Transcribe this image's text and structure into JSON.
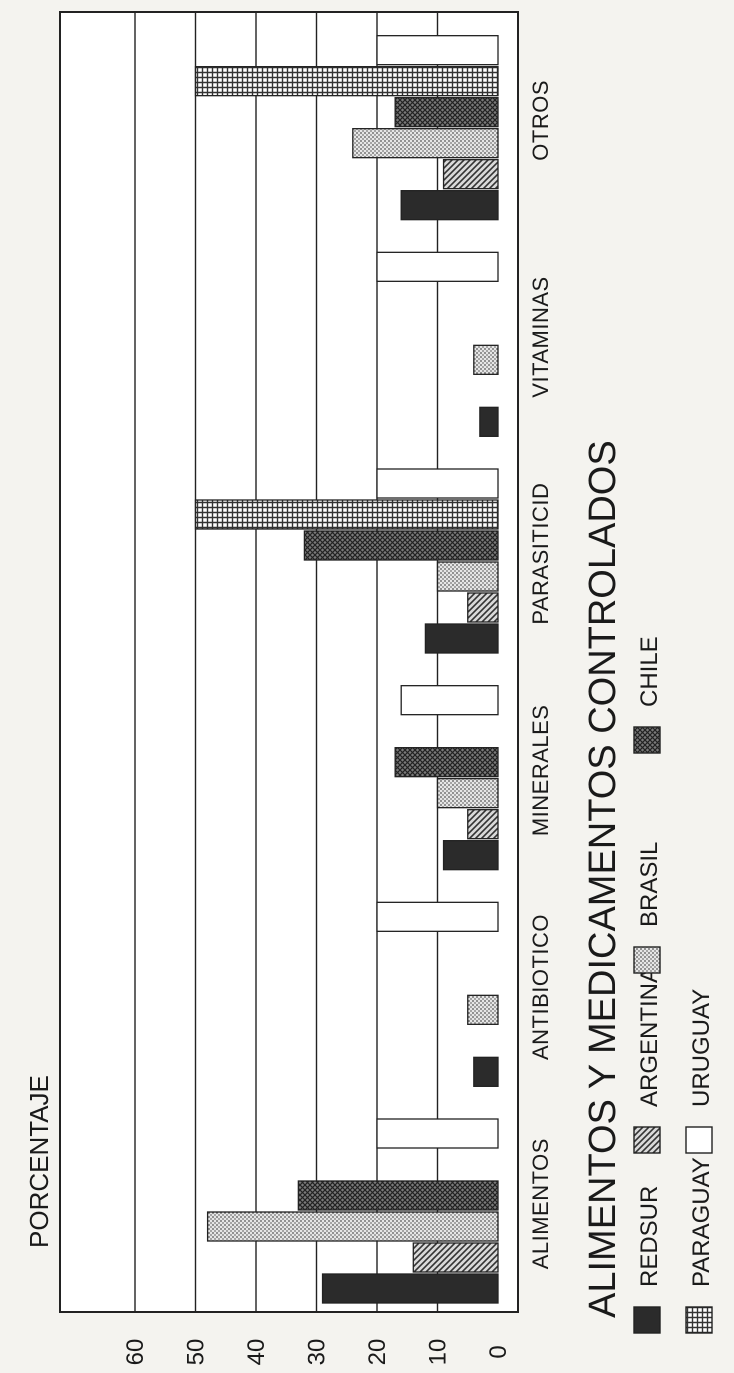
{
  "chart_data": {
    "type": "bar",
    "orientation": "horizontal",
    "title": "ALIMENTOS Y MEDICAMENTOS CONTROLADOS",
    "ylabel": "PORCENTAJE",
    "xlabel": "",
    "ylim": [
      0,
      60
    ],
    "yticks": [
      "0",
      "10",
      "20",
      "30",
      "40",
      "50",
      "60"
    ],
    "grid": true,
    "legend_position": "bottom",
    "categories": [
      "ALIMENTOS",
      "ANTIBIOTICO",
      "MINERALES",
      "PARASITICID",
      "VITAMINAS",
      "OTROS"
    ],
    "series": [
      {
        "name": "REDSUR",
        "pattern": "solid",
        "color": "#2b2b2b",
        "values": [
          29,
          4,
          9,
          12,
          3,
          16
        ]
      },
      {
        "name": "ARGENTINA",
        "pattern": "diagonal",
        "color": "#4a4a4a",
        "values": [
          14,
          0,
          5,
          5,
          0,
          9
        ]
      },
      {
        "name": "BRASIL",
        "pattern": "dots",
        "color": "#9a9a9a",
        "values": [
          48,
          5,
          10,
          10,
          4,
          24
        ]
      },
      {
        "name": "CHILE",
        "pattern": "crosshatch",
        "color": "#5a5a5a",
        "values": [
          33,
          0,
          17,
          32,
          0,
          17
        ]
      },
      {
        "name": "PARAGUAY",
        "pattern": "grid",
        "color": "#6a6a6a",
        "values": [
          0,
          0,
          0,
          50,
          0,
          50
        ]
      },
      {
        "name": "URUGUAY",
        "pattern": "empty",
        "color": "#ffffff",
        "values": [
          20,
          20,
          16,
          20,
          20,
          20
        ]
      }
    ]
  }
}
